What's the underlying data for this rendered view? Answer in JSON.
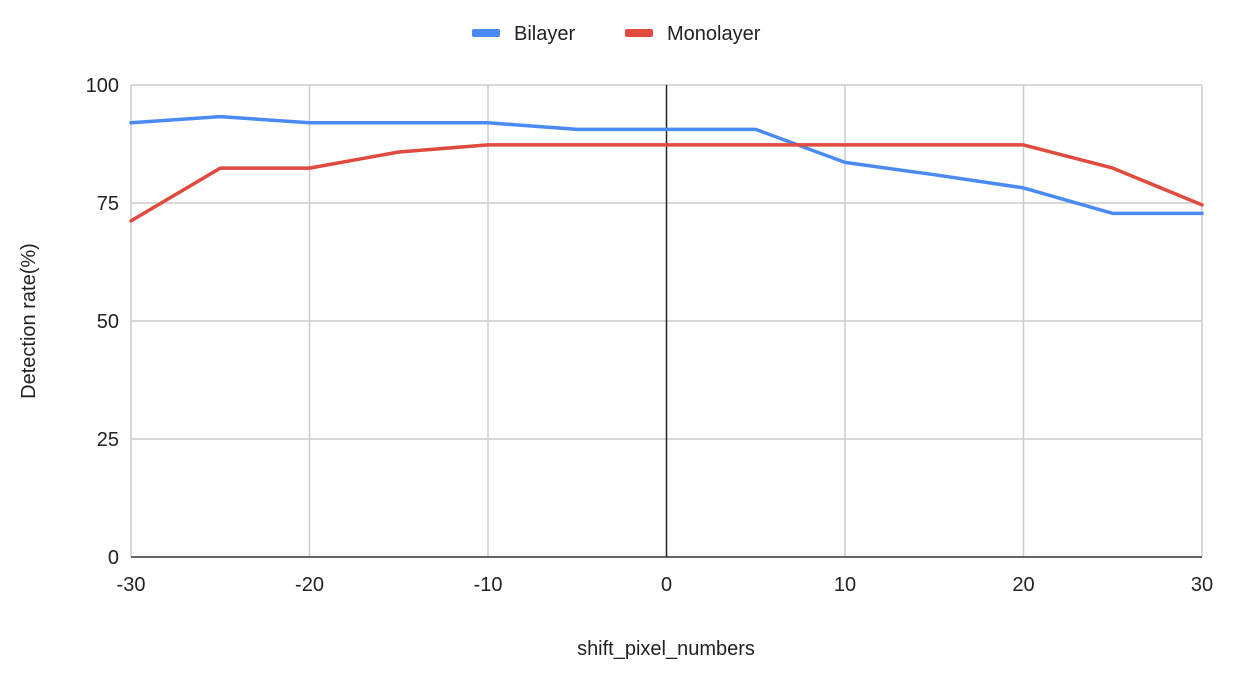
{
  "chart_data": {
    "type": "line",
    "title": "",
    "xlabel": "shift_pixel_numbers",
    "ylabel": "Detection rate(%)",
    "xlim": [
      -30,
      30
    ],
    "ylim": [
      0,
      100
    ],
    "x_ticks": [
      -30,
      -20,
      -10,
      0,
      10,
      20,
      30
    ],
    "y_ticks": [
      0,
      25,
      50,
      75,
      100
    ],
    "grid": true,
    "legend_position": "top-center",
    "x": [
      -30,
      -25,
      -20,
      -15,
      -10,
      -5,
      0,
      5,
      10,
      15,
      20,
      25,
      30
    ],
    "series": [
      {
        "name": "Bilayer",
        "color": "#4a8af4",
        "values": [
          92,
          93.3,
          92,
          92,
          92,
          90.6,
          90.6,
          90.6,
          83.6,
          81,
          78.2,
          72.8,
          72.8
        ]
      },
      {
        "name": "Monolayer",
        "color": "#e04a3f",
        "values": [
          71.2,
          82.4,
          82.4,
          85.8,
          87.3,
          87.3,
          87.3,
          87.3,
          87.3,
          87.3,
          87.3,
          82.4,
          74.6
        ]
      }
    ]
  }
}
